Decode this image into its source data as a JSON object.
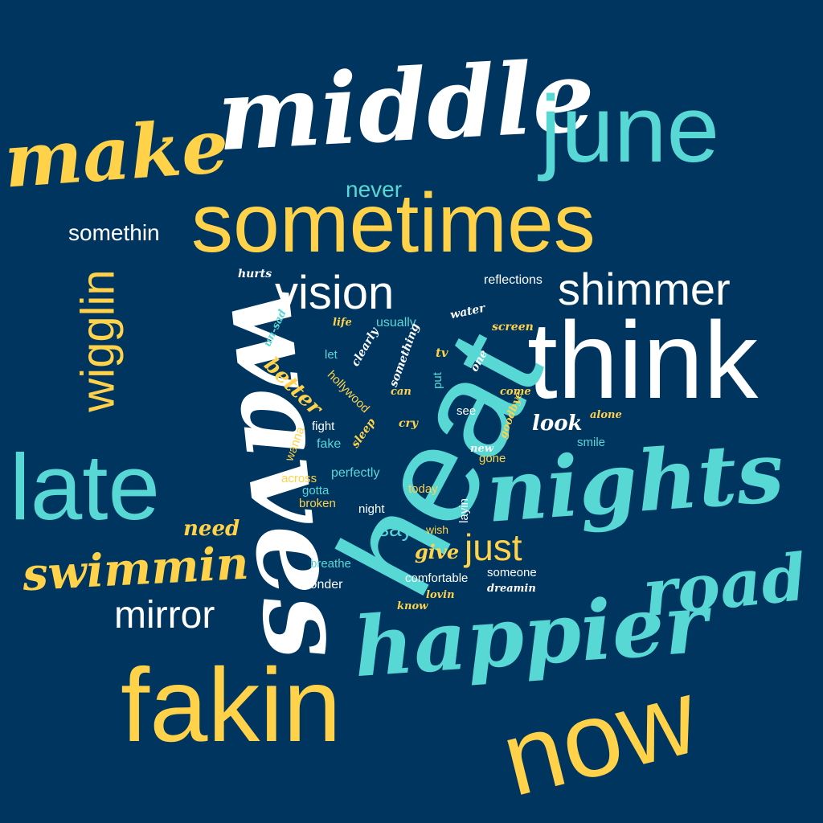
{
  "colors": {
    "background": "#003560",
    "yellow": "#FFD24A",
    "teal": "#58D8D4",
    "white": "#FFFFFF"
  },
  "words": [
    {
      "text": "middle",
      "color": "white",
      "style": "script"
    },
    {
      "text": "make",
      "color": "yellow",
      "style": "script"
    },
    {
      "text": "june",
      "color": "teal",
      "style": "sans"
    },
    {
      "text": "never",
      "color": "teal",
      "style": "sans"
    },
    {
      "text": "sometimes",
      "color": "yellow",
      "style": "sans"
    },
    {
      "text": "somethin",
      "color": "white",
      "style": "sans"
    },
    {
      "text": "vision",
      "color": "white",
      "style": "sans"
    },
    {
      "text": "shimmer",
      "color": "white",
      "style": "sans"
    },
    {
      "text": "reflections",
      "color": "white",
      "style": "sans"
    },
    {
      "text": "hurts",
      "color": "white",
      "style": "script"
    },
    {
      "text": "think",
      "color": "white",
      "style": "sans"
    },
    {
      "text": "heat",
      "color": "teal",
      "style": "sans"
    },
    {
      "text": "waves",
      "color": "white",
      "style": "script"
    },
    {
      "text": "wigglin",
      "color": "yellow",
      "style": "sans"
    },
    {
      "text": "late",
      "color": "teal",
      "style": "sans"
    },
    {
      "text": "nights",
      "color": "teal",
      "style": "script"
    },
    {
      "text": "swimmin",
      "color": "yellow",
      "style": "script"
    },
    {
      "text": "need",
      "color": "yellow",
      "style": "script"
    },
    {
      "text": "mirror",
      "color": "white",
      "style": "sans"
    },
    {
      "text": "happier",
      "color": "teal",
      "style": "script"
    },
    {
      "text": "road",
      "color": "teal",
      "style": "script"
    },
    {
      "text": "fakin",
      "color": "yellow",
      "style": "sans"
    },
    {
      "text": "now",
      "color": "yellow",
      "style": "sans"
    },
    {
      "text": "just",
      "color": "yellow",
      "style": "sans"
    },
    {
      "text": "give",
      "color": "yellow",
      "style": "script"
    },
    {
      "text": "say",
      "color": "teal",
      "style": "sans"
    },
    {
      "text": "wish",
      "color": "yellow",
      "style": "sans"
    },
    {
      "text": "layin",
      "color": "white",
      "style": "sans"
    },
    {
      "text": "life",
      "color": "yellow",
      "style": "script"
    },
    {
      "text": "usually",
      "color": "teal",
      "style": "sans"
    },
    {
      "text": "water",
      "color": "white",
      "style": "script"
    },
    {
      "text": "screen",
      "color": "yellow",
      "style": "script"
    },
    {
      "text": "un-sad",
      "color": "teal",
      "style": "script"
    },
    {
      "text": "clearly",
      "color": "white",
      "style": "script"
    },
    {
      "text": "something",
      "color": "white",
      "style": "script"
    },
    {
      "text": "tv",
      "color": "yellow",
      "style": "script"
    },
    {
      "text": "one",
      "color": "white",
      "style": "script"
    },
    {
      "text": "let",
      "color": "teal",
      "style": "sans"
    },
    {
      "text": "better",
      "color": "yellow",
      "style": "script"
    },
    {
      "text": "hollywood",
      "color": "yellow",
      "style": "sans"
    },
    {
      "text": "put",
      "color": "teal",
      "style": "sans"
    },
    {
      "text": "can",
      "color": "yellow",
      "style": "script"
    },
    {
      "text": "come",
      "color": "yellow",
      "style": "script"
    },
    {
      "text": "see",
      "color": "white",
      "style": "sans"
    },
    {
      "text": "goodbye",
      "color": "yellow",
      "style": "script"
    },
    {
      "text": "alone",
      "color": "yellow",
      "style": "script"
    },
    {
      "text": "look",
      "color": "white",
      "style": "script"
    },
    {
      "text": "fight",
      "color": "white",
      "style": "sans"
    },
    {
      "text": "fake",
      "color": "teal",
      "style": "sans"
    },
    {
      "text": "wanna",
      "color": "yellow",
      "style": "sans"
    },
    {
      "text": "cry",
      "color": "yellow",
      "style": "script"
    },
    {
      "text": "sleep",
      "color": "yellow",
      "style": "script"
    },
    {
      "text": "smile",
      "color": "teal",
      "style": "sans"
    },
    {
      "text": "new",
      "color": "white",
      "style": "script"
    },
    {
      "text": "gone",
      "color": "yellow",
      "style": "sans"
    },
    {
      "text": "across",
      "color": "yellow",
      "style": "sans"
    },
    {
      "text": "perfectly",
      "color": "teal",
      "style": "sans"
    },
    {
      "text": "gotta",
      "color": "teal",
      "style": "sans"
    },
    {
      "text": "today",
      "color": "yellow",
      "style": "sans"
    },
    {
      "text": "broken",
      "color": "yellow",
      "style": "sans"
    },
    {
      "text": "night",
      "color": "white",
      "style": "sans"
    },
    {
      "text": "breathe",
      "color": "teal",
      "style": "sans"
    },
    {
      "text": "wonder",
      "color": "white",
      "style": "sans"
    },
    {
      "text": "comfortable",
      "color": "white",
      "style": "sans"
    },
    {
      "text": "someone",
      "color": "white",
      "style": "sans"
    },
    {
      "text": "lovin",
      "color": "yellow",
      "style": "script"
    },
    {
      "text": "dreamin",
      "color": "white",
      "style": "script"
    },
    {
      "text": "know",
      "color": "yellow",
      "style": "script"
    }
  ]
}
